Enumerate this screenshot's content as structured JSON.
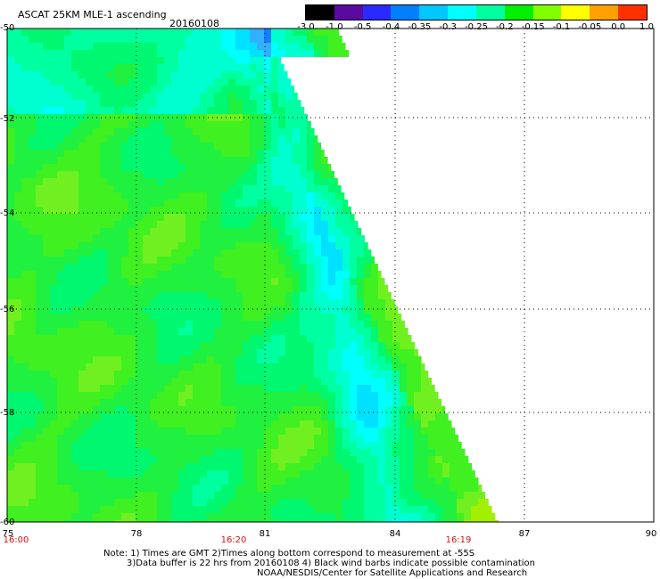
{
  "title": {
    "product": "ASCAT 25KM MLE-1 ascending",
    "date": "20160108"
  },
  "color_scale": {
    "labels": [
      "-3.0",
      "-1.0",
      "-0.5",
      "-0.4",
      "-0.35",
      "-0.3",
      "-0.25",
      "-0.2",
      "-0.15",
      "-0.1",
      "-0.05",
      "0.0",
      "1.0"
    ],
    "colors": [
      "#000000",
      "#5a0aa0",
      "#2a2aff",
      "#0080ff",
      "#00c8ff",
      "#00ffff",
      "#00ffa0",
      "#00f000",
      "#80ff00",
      "#ffff00",
      "#ffa000",
      "#ff3000"
    ]
  },
  "axes": {
    "lat_labels": [
      "-50",
      "-52",
      "-54",
      "-56",
      "-58",
      "-60"
    ],
    "lon_labels": [
      "75",
      "78",
      "81",
      "84",
      "87",
      "90"
    ],
    "time_labels": [
      "16:00",
      "16:20",
      "16:19"
    ],
    "time_color": "#e01010"
  },
  "notes": {
    "line1": "Note: 1) Times are GMT 2)Times along bottom correspond to measurement at -55S",
    "line2": "3)Data buffer is 22 hrs from 20160108 4) Black wind barbs indicate possible contamination",
    "line3": "NOAA/NESDIS/Center for Satellite Applications and Research"
  }
}
